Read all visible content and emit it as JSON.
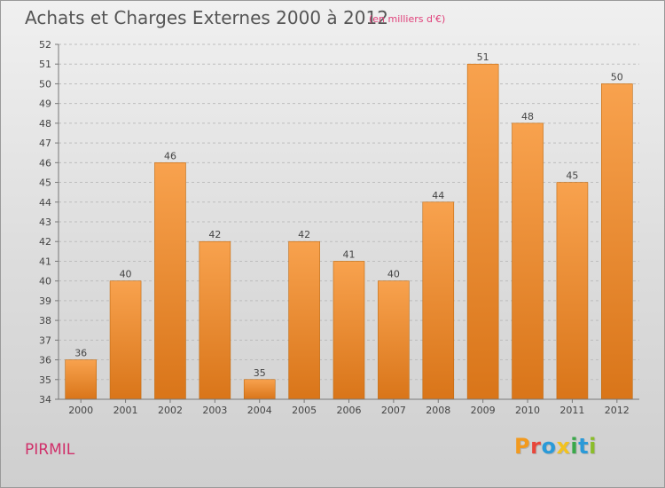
{
  "header": {
    "title": "Achats et Charges Externes 2000 à 2012",
    "subtitle": "(en milliers d'€)"
  },
  "footer": {
    "commune": "PIRMIL",
    "logo_text": "Proxiti"
  },
  "colors": {
    "bar_top": "#f8a24e",
    "bar_bottom": "#d97519",
    "bar_stroke": "#c06a10",
    "commune": "#d0306a",
    "subtitle": "#e0407a",
    "logo": [
      "#f29a1f",
      "#e8463a",
      "#2a9ad8",
      "#f2c21f",
      "#3aa84a",
      "#2a9ad8",
      "#8bbd2a"
    ]
  },
  "chart_data": {
    "type": "bar",
    "categories": [
      "2000",
      "2001",
      "2002",
      "2003",
      "2004",
      "2005",
      "2006",
      "2007",
      "2008",
      "2009",
      "2010",
      "2011",
      "2012"
    ],
    "values": [
      36,
      40,
      46,
      42,
      35,
      42,
      41,
      40,
      44,
      51,
      48,
      45,
      50
    ],
    "ylim": [
      34,
      52
    ],
    "yticks": [
      34,
      35,
      36,
      37,
      38,
      39,
      40,
      41,
      42,
      43,
      44,
      45,
      46,
      47,
      48,
      49,
      50,
      51,
      52
    ],
    "grid": "horizontal-dashed",
    "data_labels": true
  }
}
